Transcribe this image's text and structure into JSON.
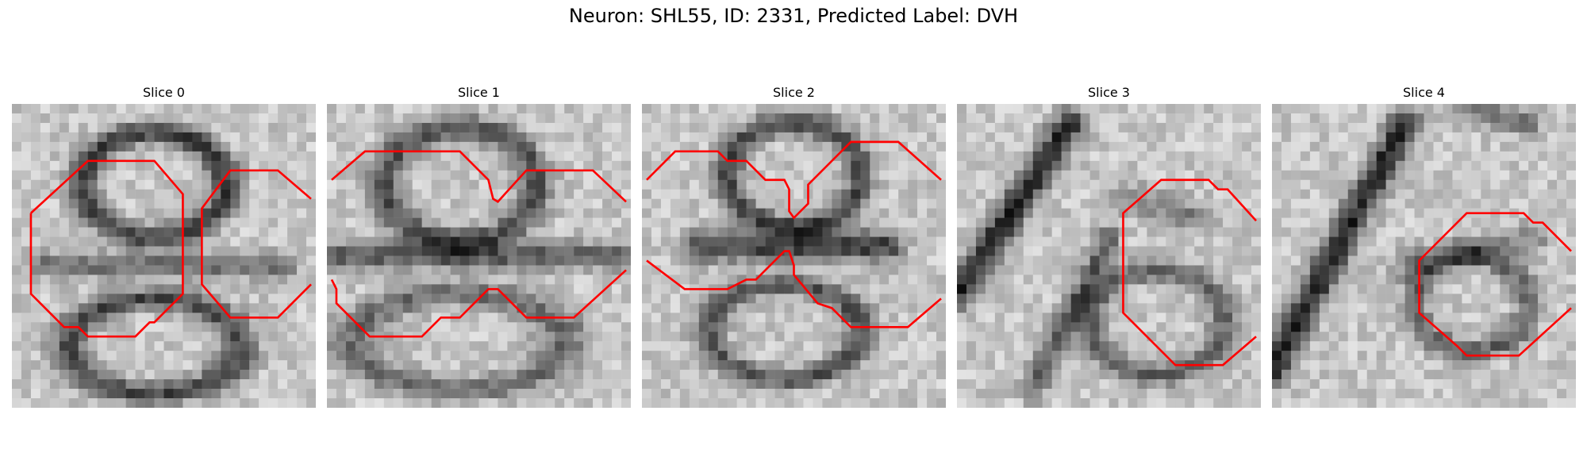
{
  "figure": {
    "title": "Neuron: SHL55, ID: 2331, Predicted Label: DVH"
  },
  "colors": {
    "contour": "#ff0000",
    "image_cmap": "grayscale"
  },
  "slices": [
    {
      "title": "Slice 0"
    },
    {
      "title": "Slice 1"
    },
    {
      "title": "Slice 2"
    },
    {
      "title": "Slice 3"
    },
    {
      "title": "Slice 4"
    }
  ]
}
